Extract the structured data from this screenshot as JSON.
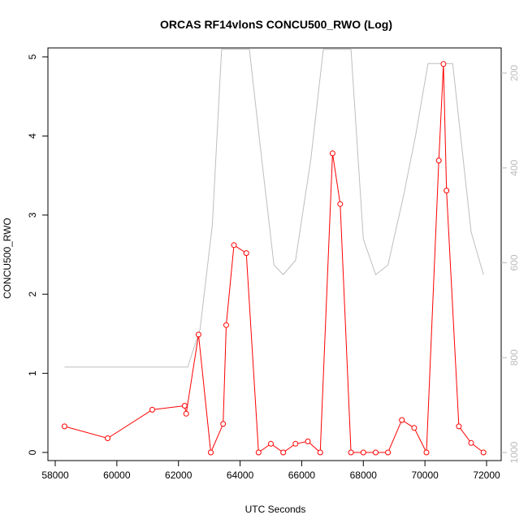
{
  "chart_data": {
    "type": "line",
    "title": "ORCAS RF14vlonS CONCU500_RWO (Log)",
    "xlabel": "UTC Seconds",
    "ylabel": "CONCU500_RWO",
    "xlim": [
      58000,
      72200
    ],
    "ylim": [
      0,
      5.1
    ],
    "x_ticks": [
      58000,
      60000,
      62000,
      64000,
      66000,
      68000,
      70000,
      72000
    ],
    "y_ticks": [
      0,
      1,
      2,
      3,
      4,
      5
    ],
    "y2_scale": "reversed",
    "y2_lim": [
      1040,
      155
    ],
    "y2_ticks": [
      200,
      400,
      600,
      800,
      1000
    ],
    "colors": {
      "primary": "#ff0000",
      "secondary": "#bebebe",
      "axis": "#000000",
      "secondary_axis": "#bbbbbb"
    },
    "series": [
      {
        "axis": "left",
        "style": "line-with-circles",
        "x": [
          58300,
          59700,
          61150,
          62200,
          62250,
          62650,
          63050,
          63450,
          63550,
          63800,
          64200,
          64600,
          65000,
          65400,
          65800,
          66200,
          66600,
          67000,
          67250,
          67600,
          68000,
          68400,
          68800,
          69250,
          69650,
          70050,
          70450,
          70600,
          70700,
          71100,
          71500,
          71900
        ],
        "values": [
          0.33,
          0.18,
          0.54,
          0.59,
          0.49,
          1.49,
          0.0,
          0.36,
          1.61,
          2.62,
          2.52,
          0.0,
          0.11,
          0.0,
          0.11,
          0.14,
          0.0,
          3.78,
          3.14,
          0.0,
          0.0,
          0.0,
          0.0,
          0.41,
          0.31,
          0.0,
          3.69,
          4.91,
          3.31,
          0.33,
          0.12,
          0.0
        ]
      },
      {
        "axis": "right",
        "style": "line",
        "x": [
          58300,
          62300,
          62700,
          63100,
          63400,
          64300,
          64700,
          65100,
          65400,
          65800,
          66300,
          66700,
          67600,
          68000,
          68400,
          68800,
          69300,
          69700,
          70100,
          70900,
          71500,
          71900
        ],
        "values": [
          820,
          820,
          740,
          520,
          150,
          150,
          380,
          605,
          625,
          595,
          380,
          150,
          150,
          550,
          625,
          605,
          460,
          330,
          180,
          180,
          535,
          625
        ]
      }
    ]
  }
}
